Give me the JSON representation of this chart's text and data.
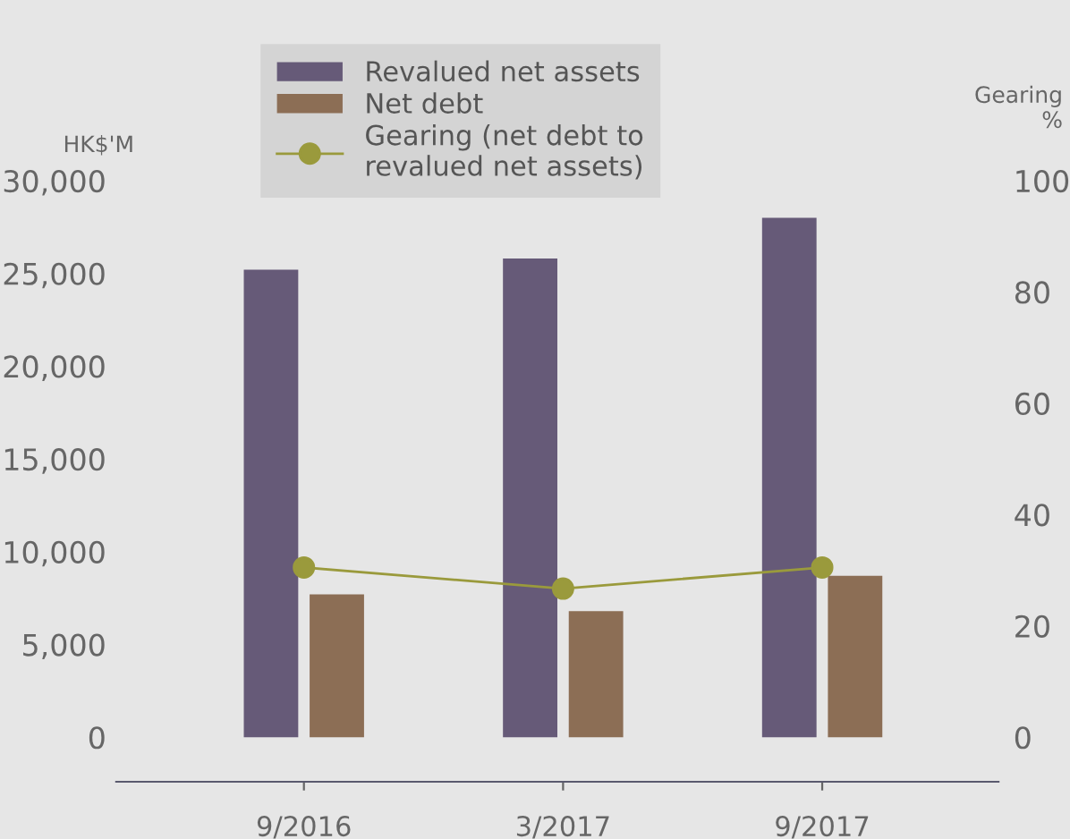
{
  "chart_data": {
    "type": "bar",
    "categories": [
      "9/2016",
      "3/2017",
      "9/2017"
    ],
    "ylabel": "HK$'M",
    "y2label": "Gearing\n%",
    "series": [
      {
        "name": "Revalued net assets",
        "color": "#665a78",
        "values": [
          25200,
          25800,
          28000
        ]
      },
      {
        "name": "Net debt",
        "color": "#8c6e55",
        "values": [
          7700,
          6800,
          8700
        ]
      },
      {
        "name": "Gearing (net debt to\nrevalued net assets)",
        "type": "line",
        "axis": "y2",
        "color": "#9a9a3c",
        "marker": "circle",
        "values": [
          30.5,
          26.7,
          30.5
        ]
      }
    ],
    "ylim": [
      -2400,
      30000
    ],
    "yticks": [
      {
        "value": 0,
        "label": "0"
      },
      {
        "value": 5000,
        "label": "5,000"
      },
      {
        "value": 10000,
        "label": "10,000"
      },
      {
        "value": 15000,
        "label": "15,000"
      },
      {
        "value": 20000,
        "label": "20,000"
      },
      {
        "value": 25000,
        "label": "25,000"
      },
      {
        "value": 30000,
        "label": "30,000"
      }
    ],
    "y2lim": [
      -8,
      100
    ],
    "y2ticks": [
      0,
      20,
      40,
      60,
      80,
      100
    ],
    "grid": false,
    "legend": "top"
  }
}
